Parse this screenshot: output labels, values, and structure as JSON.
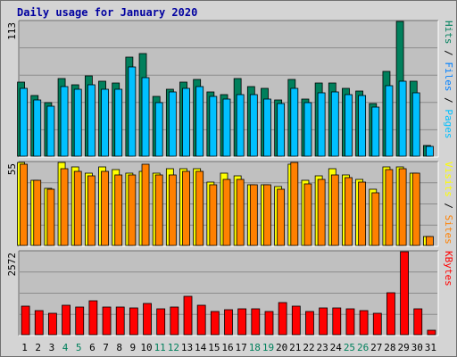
{
  "title": "Daily usage for January 2020",
  "colors": {
    "hits": "#00805c",
    "files": "#00c0ff",
    "sites": "#ff8000",
    "visits": "#ffff00",
    "kbytes": "#ff0000",
    "panel_bg": "#c0c0c0",
    "frame_bg": "#d4d4d4",
    "weekend_day": "#00805c",
    "weekday": "#000000",
    "grid": "#8c8c8c"
  },
  "chart_data": [
    {
      "type": "bar",
      "panel": "hits-files",
      "ymax_label": "113",
      "ylim": [
        0,
        113
      ],
      "legend": [
        {
          "text": "Hits",
          "color": "#00805c"
        },
        {
          "text": " / ",
          "color": "#000000"
        },
        {
          "text": "Files",
          "color": "#0080ff"
        },
        {
          "text": " / ",
          "color": "#000000"
        },
        {
          "text": "Pages",
          "color": "#00c0ff"
        }
      ],
      "categories": [
        "1",
        "2",
        "3",
        "4",
        "5",
        "6",
        "7",
        "8",
        "9",
        "10",
        "11",
        "12",
        "13",
        "14",
        "15",
        "16",
        "17",
        "18",
        "19",
        "20",
        "21",
        "22",
        "23",
        "24",
        "25",
        "26",
        "27",
        "28",
        "29",
        "30",
        "31"
      ],
      "series": [
        {
          "name": "Hits",
          "color": "#00805c",
          "values": [
            62,
            51,
            45,
            65,
            60,
            67,
            63,
            61,
            83,
            86,
            50,
            56,
            62,
            64,
            54,
            52,
            65,
            58,
            57,
            47,
            64,
            48,
            61,
            61,
            57,
            55,
            44,
            71,
            113,
            63,
            9
          ]
        },
        {
          "name": "Pages",
          "color": "#00c0ff",
          "values": [
            57,
            47,
            42,
            58,
            56,
            60,
            56,
            56,
            75,
            66,
            45,
            54,
            57,
            58,
            50,
            48,
            52,
            52,
            48,
            44,
            57,
            45,
            53,
            54,
            52,
            51,
            41,
            59,
            63,
            53,
            8
          ]
        }
      ]
    },
    {
      "type": "bar",
      "panel": "sites-visits",
      "ymax_label": "55",
      "ylim": [
        0,
        55
      ],
      "legend": [
        {
          "text": "Visits",
          "color": "#ffff00"
        },
        {
          "text": " / ",
          "color": "#000000"
        },
        {
          "text": "Sites",
          "color": "#ff8000"
        }
      ],
      "categories": [
        "1",
        "2",
        "3",
        "4",
        "5",
        "6",
        "7",
        "8",
        "9",
        "10",
        "11",
        "12",
        "13",
        "14",
        "15",
        "16",
        "17",
        "18",
        "19",
        "20",
        "21",
        "22",
        "23",
        "24",
        "25",
        "26",
        "27",
        "28",
        "29",
        "30",
        "31"
      ],
      "series": [
        {
          "name": "Visits",
          "color": "#ffff00",
          "values": [
            55,
            43,
            38,
            55,
            52,
            48,
            52,
            50,
            48,
            49,
            48,
            51,
            51,
            51,
            42,
            48,
            46,
            40,
            40,
            39,
            54,
            43,
            46,
            51,
            47,
            44,
            37,
            52,
            52,
            48,
            6
          ]
        },
        {
          "name": "Sites",
          "color": "#ff8000",
          "values": [
            54,
            43,
            37,
            51,
            49,
            46,
            49,
            47,
            47,
            54,
            47,
            47,
            49,
            49,
            40,
            44,
            44,
            40,
            40,
            37,
            55,
            41,
            44,
            47,
            45,
            42,
            35,
            50,
            51,
            48,
            6
          ]
        }
      ]
    },
    {
      "type": "bar",
      "panel": "kbytes",
      "ymax_label": "2572",
      "ylim": [
        0,
        2572
      ],
      "legend": [
        {
          "text": "KBytes",
          "color": "#ff0000"
        }
      ],
      "categories": [
        "1",
        "2",
        "3",
        "4",
        "5",
        "6",
        "7",
        "8",
        "9",
        "10",
        "11",
        "12",
        "13",
        "14",
        "15",
        "16",
        "17",
        "18",
        "19",
        "20",
        "21",
        "22",
        "23",
        "24",
        "25",
        "26",
        "27",
        "28",
        "29",
        "30",
        "31"
      ],
      "series": [
        {
          "name": "KBytes",
          "color": "#ff0000",
          "values": [
            898,
            758,
            658,
            913,
            870,
            1050,
            870,
            845,
            830,
            955,
            795,
            870,
            1176,
            900,
            725,
            780,
            805,
            805,
            725,
            985,
            898,
            715,
            830,
            820,
            805,
            755,
            660,
            1300,
            2572,
            800,
            150
          ]
        }
      ]
    }
  ],
  "x_axis": {
    "days": [
      "1",
      "2",
      "3",
      "4",
      "5",
      "6",
      "7",
      "8",
      "9",
      "10",
      "11",
      "12",
      "13",
      "14",
      "15",
      "16",
      "17",
      "18",
      "19",
      "20",
      "21",
      "22",
      "23",
      "24",
      "25",
      "26",
      "27",
      "28",
      "29",
      "30",
      "31"
    ],
    "weekend_days": [
      "4",
      "5",
      "11",
      "12",
      "18",
      "19",
      "25",
      "26"
    ]
  }
}
